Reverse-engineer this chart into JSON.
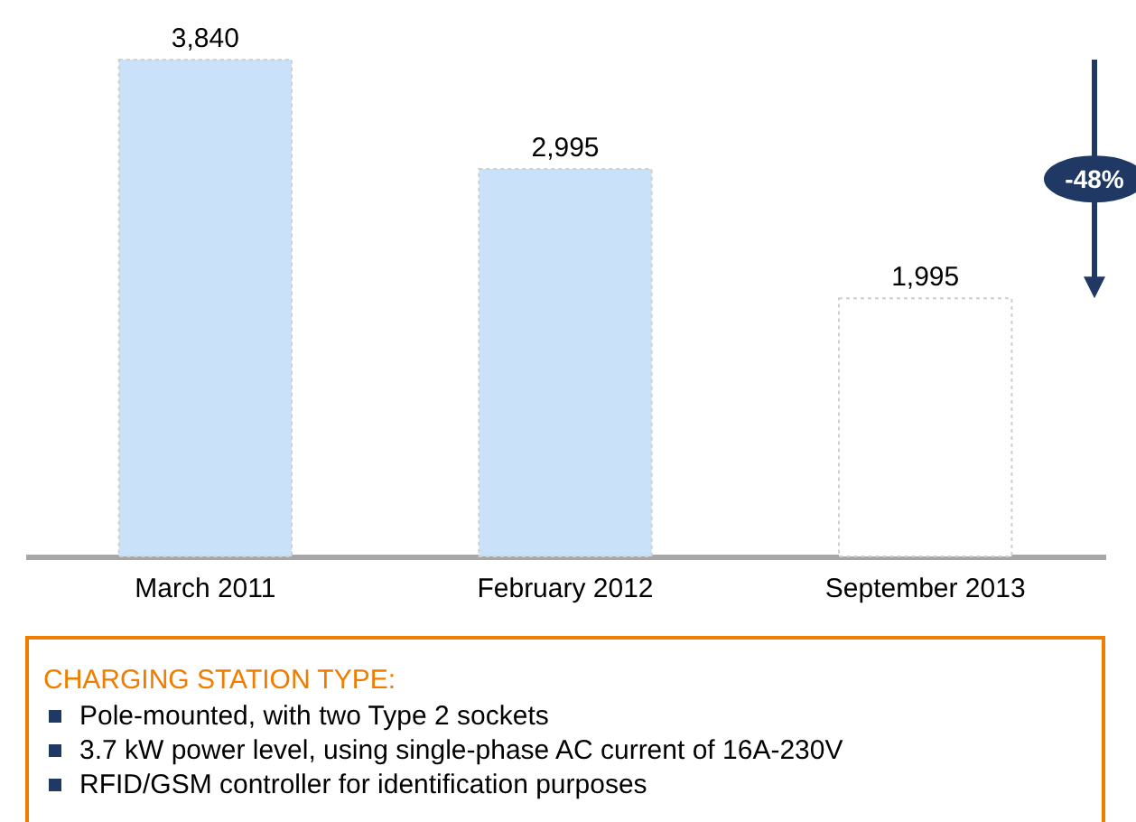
{
  "chart_data": {
    "type": "bar",
    "categories": [
      "March 2011",
      "February 2012",
      "September 2013"
    ],
    "values": [
      3840,
      2995,
      1995
    ],
    "colors": [
      "#c9e2f9",
      "#c9e2f9",
      "#ffffff"
    ],
    "value_labels": [
      "3,840",
      "2,995",
      "1,995"
    ],
    "annotations": [
      "-48%",
      "CHARGING STATION TYPE:",
      "Pole-mounted, with two Type 2 sockets",
      "3.7 kW power level, using single-phase AC current of 16A-230V",
      "RFID/GSM controller for identification purposes"
    ]
  }
}
